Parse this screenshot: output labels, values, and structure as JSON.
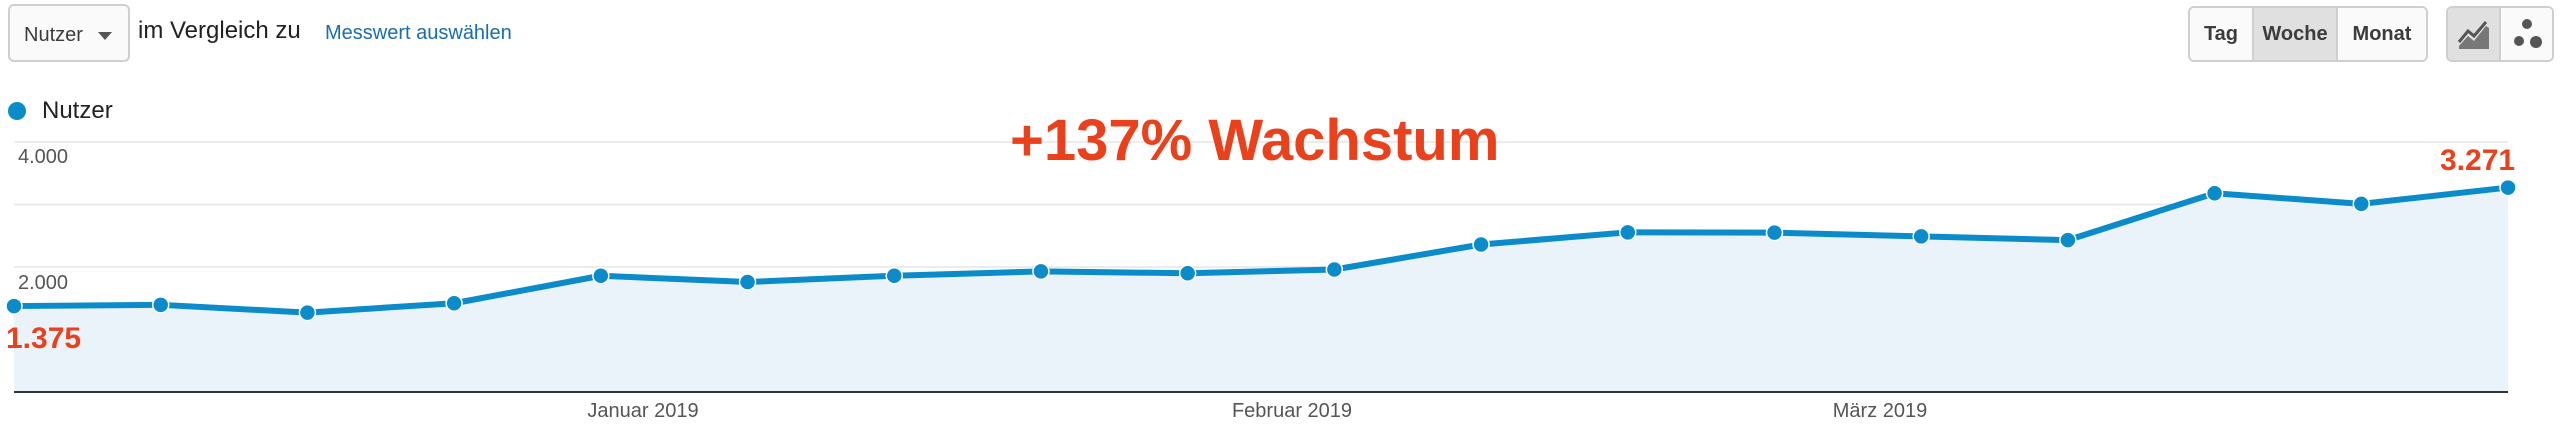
{
  "toolbar": {
    "metric_select": "Nutzer",
    "compare_text": "im Vergleich zu",
    "choose_metric_link": "Messwert auswählen",
    "period_buttons": [
      "Tag",
      "Woche",
      "Monat"
    ],
    "active_period": "Woche",
    "view_icons": [
      "line-chart-icon",
      "motion-chart-icon"
    ]
  },
  "colors": {
    "series": "#0b8bc9",
    "area_fill": "#eaf2fa",
    "highlight": "#e8411b"
  },
  "annotations": {
    "headline": "+137% Wachstum",
    "first_value": "1.375",
    "last_value": "3.271"
  },
  "chart_data": {
    "type": "area",
    "legend": [
      "Nutzer"
    ],
    "legend_position": "top-left",
    "grid": true,
    "y_tick_labels": [
      "4.000",
      "2.000"
    ],
    "ylim": [
      0,
      4000
    ],
    "x_tick_labels": [
      "Januar 2019",
      "Februar 2019",
      "März 2019"
    ],
    "series": [
      {
        "name": "Nutzer",
        "values": [
          1375,
          1395,
          1270,
          1420,
          1860,
          1760,
          1860,
          1930,
          1900,
          1960,
          2360,
          2555,
          2550,
          2490,
          2430,
          3180,
          3010,
          3271
        ]
      }
    ]
  }
}
